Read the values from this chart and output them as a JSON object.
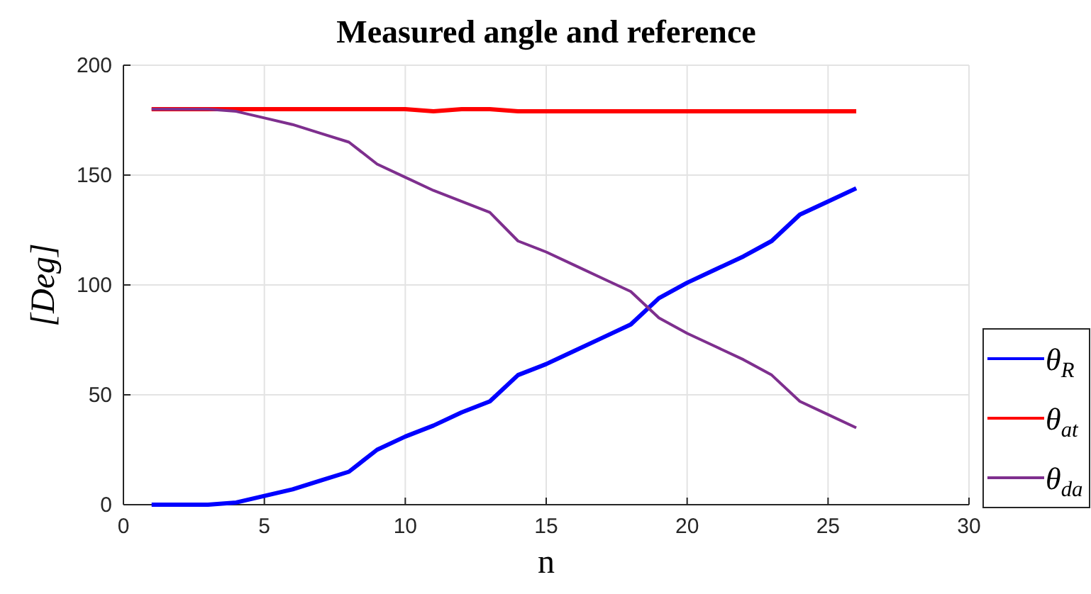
{
  "chart_data": {
    "type": "line",
    "title": "Measured angle and reference",
    "xlabel": "n",
    "ylabel": "[Deg]",
    "x": [
      1,
      2,
      3,
      4,
      5,
      6,
      7,
      8,
      9,
      10,
      11,
      12,
      13,
      14,
      15,
      16,
      17,
      18,
      19,
      20,
      21,
      22,
      23,
      24,
      25,
      26
    ],
    "series": [
      {
        "name": "θ$_{R}$",
        "color": "#0000ff",
        "values": [
          0,
          0,
          0,
          1,
          4,
          7,
          11,
          15,
          25,
          31,
          36,
          42,
          47,
          59,
          64,
          70,
          76,
          82,
          94,
          101,
          107,
          113,
          120,
          132,
          138,
          144
        ]
      },
      {
        "name": "θ$_{at}$",
        "color": "#ff0000",
        "values": [
          180,
          180,
          180,
          180,
          180,
          180,
          180,
          180,
          180,
          180,
          179,
          180,
          180,
          179,
          179,
          179,
          179,
          179,
          179,
          179,
          179,
          179,
          179,
          179,
          179,
          179
        ]
      },
      {
        "name": "θ$_{da}$",
        "color": "#7e2f8e",
        "values": [
          180,
          180,
          180,
          179,
          176,
          173,
          169,
          165,
          155,
          149,
          143,
          138,
          133,
          120,
          115,
          109,
          103,
          97,
          85,
          78,
          72,
          66,
          59,
          47,
          41,
          35
        ]
      }
    ],
    "xlim": [
      0,
      30
    ],
    "xticks": [
      0,
      5,
      10,
      15,
      20,
      25,
      30
    ],
    "ylim": [
      0,
      200
    ],
    "yticks": [
      0,
      50,
      100,
      150,
      200
    ],
    "grid": true,
    "legend": "right",
    "line_style": "solid"
  }
}
